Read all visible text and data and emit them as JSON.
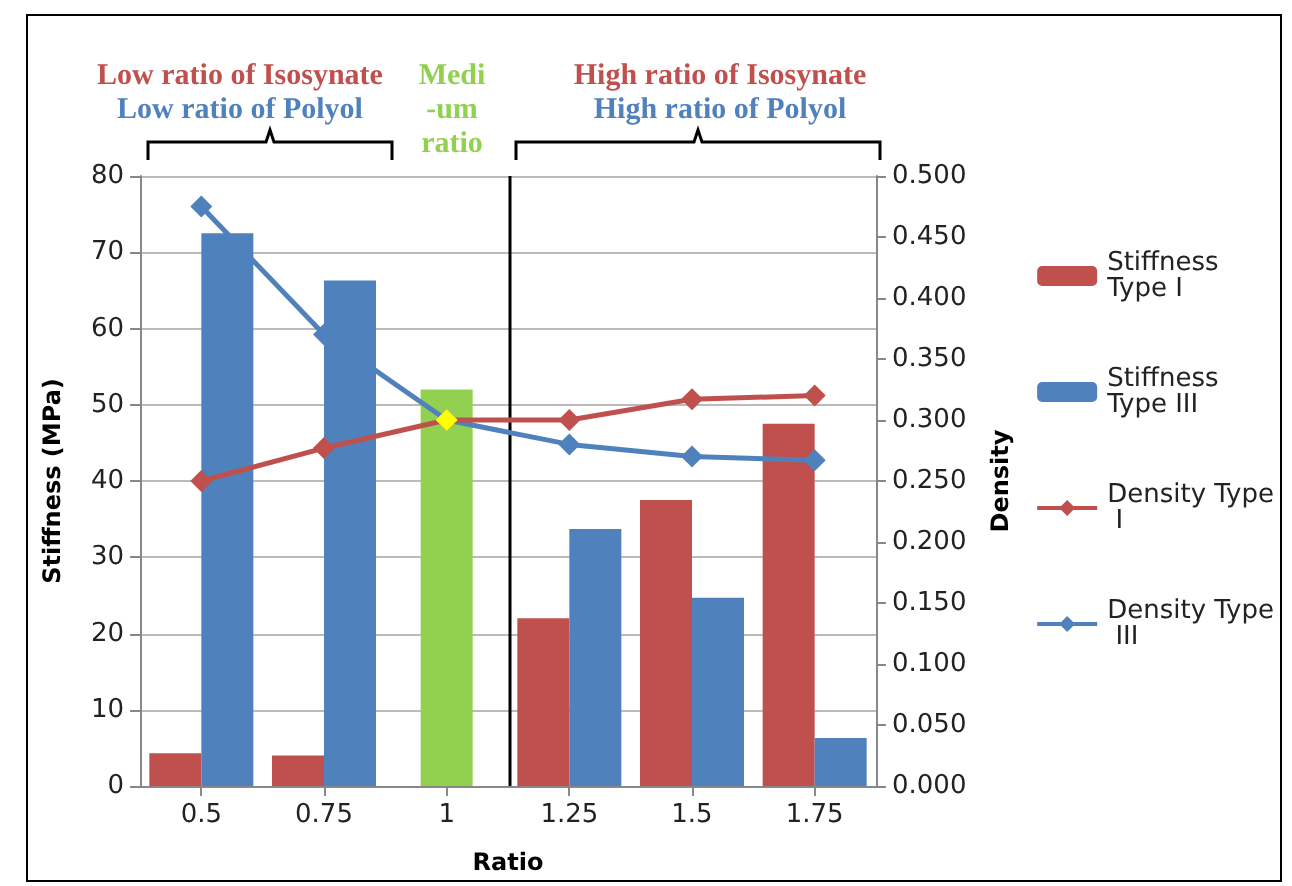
{
  "chart_data": {
    "type": "bar",
    "xlabel": "Ratio",
    "ylabel": "Stiffness (MPa)",
    "y2label": "Density",
    "x": [
      0.5,
      0.75,
      1,
      1.25,
      1.5,
      1.75
    ],
    "xlim": [
      0.375,
      1.875
    ],
    "xticks": [
      0.5,
      0.75,
      1,
      1.25,
      1.5,
      1.75
    ],
    "ref_lines": [
      {
        "axis": "x",
        "value": 1.125,
        "color": "#000000"
      }
    ],
    "series": [
      {
        "name": "Stiffness Type I",
        "color": "#c0504d",
        "values": [
          4.3,
          4.0,
          null,
          22,
          37.5,
          47.5
        ]
      },
      {
        "name": "Stiffness Type III",
        "color": "#4f81bd",
        "values": [
          72.5,
          66.3,
          null,
          33.7,
          24.7,
          6.3
        ]
      },
      {
        "color": "#92d050",
        "values": [
          null,
          null,
          52,
          null,
          null,
          null
        ]
      },
      {
        "name": "Density Type I",
        "type": "line",
        "axis": "y2",
        "color": "#c0504d",
        "colors": [
          "#c0504d",
          "#c0504d",
          "#ffff00",
          "#c0504d",
          "#c0504d",
          "#c0504d"
        ],
        "values": [
          0.25,
          0.277,
          0.3,
          0.3,
          0.317,
          0.32
        ]
      },
      {
        "name": "Density Type III",
        "type": "line",
        "axis": "y2",
        "color": "#4f81bd",
        "values": [
          0.475,
          0.37,
          0.3,
          0.28,
          0.27,
          0.267
        ]
      }
    ],
    "ylim": [
      0,
      80
    ],
    "yticks": [
      0,
      10,
      20,
      30,
      40,
      50,
      60,
      70,
      80
    ],
    "y2lim": [
      0,
      0.5
    ],
    "y2ticks": [
      {
        "value": 0,
        "label": "0.000"
      },
      {
        "value": 0.05,
        "label": "0.050"
      },
      {
        "value": 0.1,
        "label": "0.100"
      },
      {
        "value": 0.15,
        "label": "0.150"
      },
      {
        "value": 0.2,
        "label": "0.200"
      },
      {
        "value": 0.25,
        "label": "0.250"
      },
      {
        "value": 0.3,
        "label": "0.300"
      },
      {
        "value": 0.35,
        "label": "0.350"
      },
      {
        "value": 0.4,
        "label": "0.400"
      },
      {
        "value": 0.45,
        "label": "0.450"
      },
      {
        "value": 0.5,
        "label": "0.500"
      }
    ],
    "annotations": [
      "Low ratio of Isosynate",
      "Low ratio of Polyol",
      "Medi\n-um\nratio",
      "High ratio of Isosynate",
      "High ratio of Polyol"
    ],
    "grid": "y",
    "legend": "right",
    "marker": "diamond",
    "line_style": "solid"
  }
}
